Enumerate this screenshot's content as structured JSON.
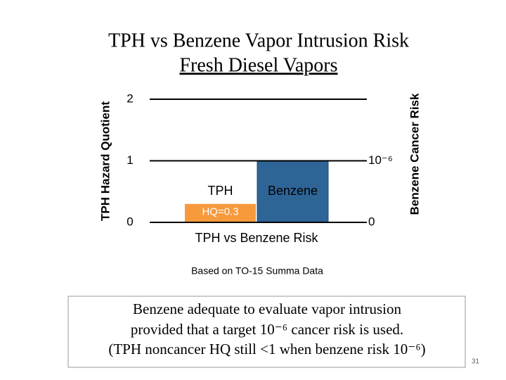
{
  "chart_data": {
    "type": "bar",
    "title": "TPH vs Benzene Vapor Intrusion Risk",
    "subtitle": "Fresh Diesel Vapors",
    "x_label": "TPH vs Benzene Risk",
    "y_label": "TPH Hazard Quotient",
    "y2_label": "Benzene Cancer Risk",
    "categories": [
      "TPH",
      "Benzene"
    ],
    "series": [
      {
        "name": "TPH",
        "color": "#f79a3c",
        "values": [
          0.3,
          null
        ],
        "value_labels": [
          "HQ=0.3",
          null
        ]
      },
      {
        "name": "Benzene",
        "color": "#2e6496",
        "values": [
          null,
          1e-06
        ],
        "axis": "y2"
      }
    ],
    "ylim": [
      0,
      2
    ],
    "yticks": [
      0,
      1,
      2
    ],
    "y2lim": [
      0,
      2e-06
    ],
    "y2ticks": [
      0,
      {
        "value": 1e-06,
        "label": "10⁻⁶"
      }
    ],
    "grid": true
  },
  "caption": "Based on TO-15 Summa Data",
  "note": {
    "lines": [
      "Benzene adequate to evaluate vapor intrusion",
      "provided that a target 10⁻⁶ cancer risk is used.",
      "(TPH noncancer HQ still <1 when benzene risk 10⁻⁶)"
    ]
  },
  "page_number": "31"
}
